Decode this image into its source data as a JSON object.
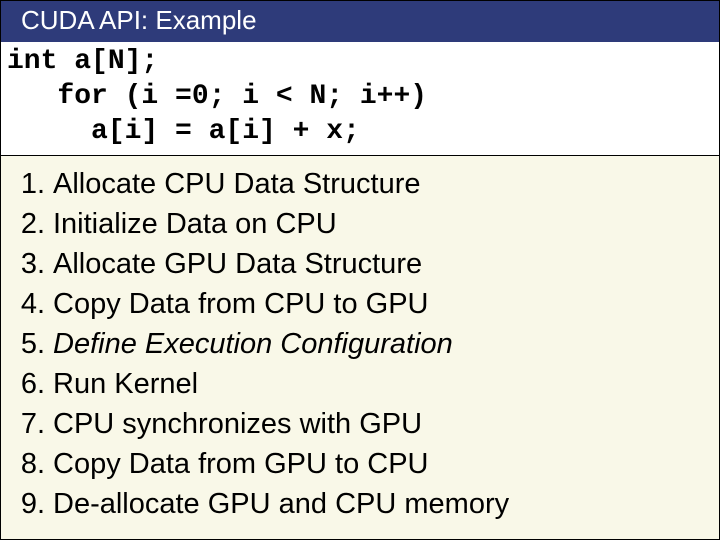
{
  "title": "CUDA API: Example",
  "code": {
    "line1": "int a[N];",
    "line2": "   for (i =0; i < N; i++)",
    "line3": "     a[i] = a[i] + x;"
  },
  "steps": [
    {
      "n": "1.",
      "text": "Allocate CPU Data Structure",
      "italic": false
    },
    {
      "n": "2.",
      "text": "Initialize Data on CPU",
      "italic": false
    },
    {
      "n": "3.",
      "text": "Allocate GPU Data Structure",
      "italic": false
    },
    {
      "n": "4.",
      "text": "Copy Data from CPU to GPU",
      "italic": false
    },
    {
      "n": "5.",
      "text": "Define Execution Configuration",
      "italic": true
    },
    {
      "n": "6.",
      "text": "Run Kernel",
      "italic": false
    },
    {
      "n": "7.",
      "text": "CPU synchronizes with GPU",
      "italic": false
    },
    {
      "n": "8.",
      "text": "Copy Data from GPU to CPU",
      "italic": false
    },
    {
      "n": "9.",
      "text": "De-allocate GPU and CPU memory",
      "italic": false
    }
  ],
  "colors": {
    "titlebar_bg": "#2e3b7a",
    "titlebar_fg": "#ffffff",
    "page_bg": "#f9f8e8",
    "code_bg": "#ffffff",
    "text": "#000000"
  },
  "fonts": {
    "title_size_pt": 20,
    "code_size_pt": 21,
    "step_size_pt": 22,
    "code_family": "Courier New",
    "body_family": "Arial"
  }
}
